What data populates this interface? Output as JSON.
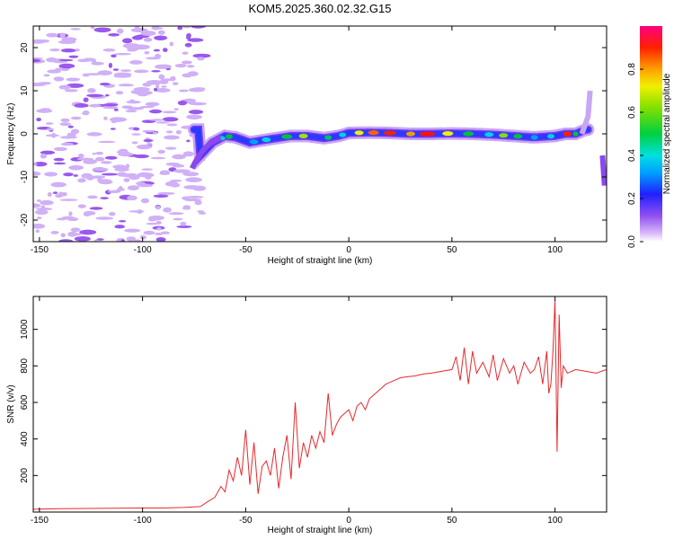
{
  "title": "KOM5.2025.360.02.32.G15",
  "colors": {
    "line": "#e8282c",
    "frame": "#000000"
  },
  "chart_data": [
    {
      "type": "heatmap",
      "title": "KOM5.2025.360.02.32.G15",
      "xlabel": "Height of straight line (km)",
      "ylabel": "Frequency (Hz)",
      "xlim": [
        -153,
        125
      ],
      "ylim": [
        -25,
        25
      ],
      "xticks": [
        -150,
        -100,
        -50,
        0,
        50,
        100
      ],
      "yticks": [
        -20,
        -10,
        0,
        10,
        20
      ],
      "ytick_labels": [
        "-20",
        "-10",
        "0",
        "10",
        "20"
      ],
      "ridge": {
        "description": "dominant frequency ridge",
        "x": [
          -72,
          -66,
          -60,
          -55,
          -48,
          -42,
          -35,
          -28,
          -20,
          -12,
          -5,
          0,
          10,
          20,
          30,
          40,
          50,
          60,
          70,
          80,
          90,
          100,
          105,
          110,
          115
        ],
        "freq": [
          -5,
          -2,
          -0.5,
          -0.8,
          -2,
          -1.5,
          -1,
          -0.5,
          -0.5,
          -1,
          -0.5,
          0.2,
          0.3,
          0.2,
          0,
          0,
          0.1,
          0,
          -0.2,
          -0.5,
          -0.8,
          -0.5,
          0,
          0,
          1
        ]
      },
      "colorbar": {
        "label": "Normalized spectral amplitude",
        "range": [
          0,
          1
        ],
        "ticks": [
          0.0,
          0.2,
          0.4,
          0.6,
          0.8
        ],
        "tick_labels": [
          "0.0",
          "0.2",
          "0.4",
          "0.6",
          "0.8"
        ]
      }
    },
    {
      "type": "line",
      "xlabel": "Height of straight line (km)",
      "ylabel": "SNR (v/v)",
      "xlim": [
        -153,
        125
      ],
      "ylim": [
        0,
        1180
      ],
      "xticks": [
        -150,
        -100,
        -50,
        0,
        50,
        100
      ],
      "yticks": [
        200,
        400,
        600,
        800,
        1000
      ],
      "ytick_labels": [
        "200",
        "400",
        "600",
        "800",
        "1000"
      ],
      "series": [
        {
          "name": "SNR",
          "color": "#e8282c",
          "x": [
            -153,
            -140,
            -120,
            -100,
            -90,
            -80,
            -72,
            -68,
            -65,
            -62,
            -60,
            -58,
            -56,
            -54,
            -52,
            -50,
            -48,
            -46,
            -44,
            -42,
            -40,
            -38,
            -36,
            -34,
            -32,
            -30,
            -28,
            -26,
            -24,
            -22,
            -20,
            -18,
            -16,
            -14,
            -12,
            -10,
            -8,
            -6,
            -4,
            -2,
            0,
            2,
            4,
            6,
            8,
            10,
            12,
            14,
            16,
            18,
            20,
            22,
            25,
            28,
            32,
            36,
            40,
            45,
            50,
            52,
            54,
            56,
            58,
            60,
            62,
            65,
            68,
            70,
            72,
            75,
            78,
            80,
            82,
            85,
            88,
            90,
            92,
            94,
            96,
            97,
            98,
            99,
            100,
            101,
            102,
            103,
            104,
            106,
            110,
            115,
            120,
            125
          ],
          "y": [
            15,
            18,
            20,
            22,
            22,
            25,
            30,
            60,
            80,
            140,
            110,
            230,
            170,
            300,
            200,
            450,
            150,
            380,
            100,
            250,
            280,
            200,
            350,
            130,
            300,
            420,
            180,
            600,
            240,
            380,
            300,
            420,
            350,
            440,
            380,
            650,
            420,
            480,
            520,
            540,
            560,
            500,
            580,
            600,
            560,
            620,
            640,
            660,
            680,
            700,
            710,
            720,
            735,
            740,
            745,
            755,
            760,
            770,
            780,
            850,
            720,
            900,
            700,
            880,
            760,
            820,
            740,
            860,
            720,
            840,
            760,
            800,
            700,
            820,
            760,
            780,
            850,
            700,
            880,
            650,
            700,
            880,
            1160,
            330,
            1080,
            680,
            800,
            760,
            780,
            770,
            760,
            780
          ]
        }
      ]
    }
  ]
}
